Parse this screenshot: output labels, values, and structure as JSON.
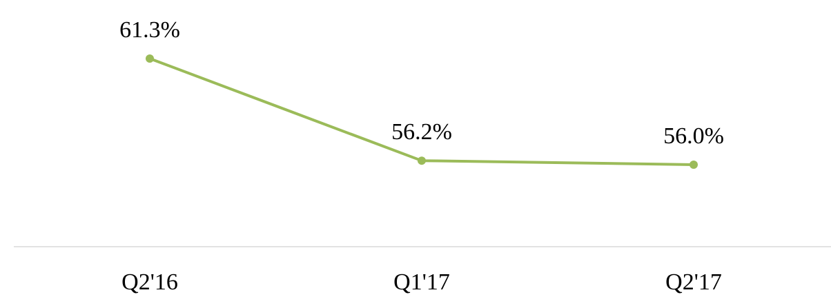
{
  "chart_data": {
    "type": "line",
    "categories": [
      "Q2'16",
      "Q1'17",
      "Q2'17"
    ],
    "values": [
      61.3,
      56.2,
      56.0
    ],
    "value_labels": [
      "61.3%",
      "56.2%",
      "56.0%"
    ],
    "color": "#9bbb59"
  }
}
